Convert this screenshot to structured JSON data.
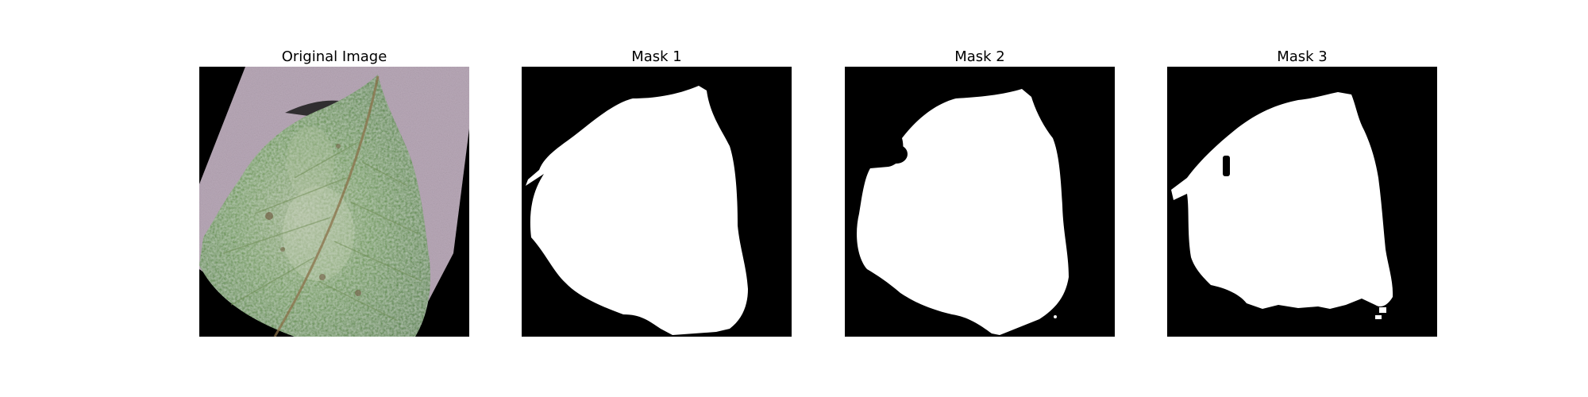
{
  "panels": [
    {
      "title": "Original Image",
      "image": "leaf-photo"
    },
    {
      "title": "Mask 1",
      "image": "segmentation-mask"
    },
    {
      "title": "Mask 2",
      "image": "segmentation-mask"
    },
    {
      "title": "Mask 3",
      "image": "segmentation-mask"
    }
  ],
  "colors": {
    "background": "#ffffff",
    "mask_background": "#000000",
    "mask_foreground": "#ffffff",
    "leaf_green": "#4f8a3a",
    "surface_purple": "#b9a9b8"
  }
}
